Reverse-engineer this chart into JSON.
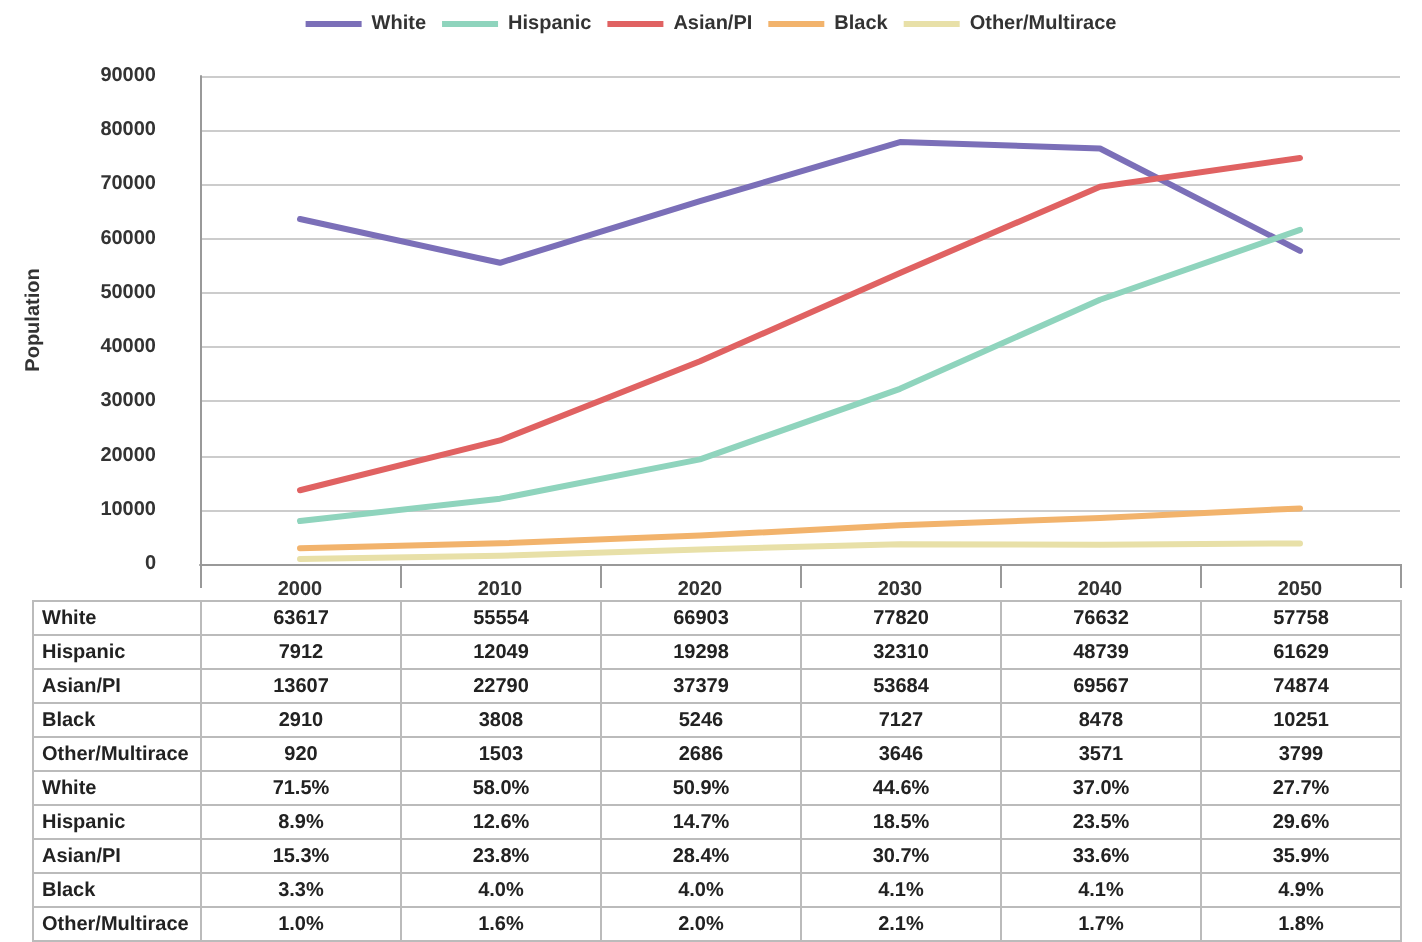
{
  "chart_data": {
    "type": "line",
    "ylabel": "Population",
    "categories": [
      "2000",
      "2010",
      "2020",
      "2030",
      "2040",
      "2050"
    ],
    "series": [
      {
        "name": "White",
        "color": "#7b6fb8",
        "values": [
          63617,
          55554,
          66903,
          77820,
          76632,
          57758
        ]
      },
      {
        "name": "Hispanic",
        "color": "#8fd4bd",
        "values": [
          7912,
          12049,
          19298,
          32310,
          48739,
          61629
        ]
      },
      {
        "name": "Asian/PI",
        "color": "#e06262",
        "values": [
          13607,
          22790,
          37379,
          53684,
          69567,
          74874
        ]
      },
      {
        "name": "Black",
        "color": "#f2b36c",
        "values": [
          2910,
          3808,
          5246,
          7127,
          8478,
          10251
        ]
      },
      {
        "name": "Other/Multirace",
        "color": "#e8e0a8",
        "values": [
          920,
          1503,
          2686,
          3646,
          3571,
          3799
        ]
      }
    ],
    "ylim": [
      0,
      90000
    ],
    "yticks": [
      0,
      10000,
      20000,
      30000,
      40000,
      50000,
      60000,
      70000,
      80000,
      90000
    ],
    "grid": "y",
    "legend": "top",
    "marker": "none",
    "line_style": "solid",
    "data_labels": true,
    "annotations": [
      "White",
      "71.5%",
      "58.0%",
      "50.9%",
      "44.6%",
      "37.0%",
      "27.7%",
      "Hispanic",
      "8.9%",
      "12.6%",
      "14.7%",
      "18.5%",
      "23.5%",
      "29.6%",
      "Asian/PI",
      "15.3%",
      "23.8%",
      "28.4%",
      "30.7%",
      "33.6%",
      "35.9%",
      "Black",
      "3.3%",
      "4.0%",
      "4.0%",
      "4.1%",
      "4.1%",
      "4.9%",
      "Other/Multirace",
      "1.0%",
      "1.6%",
      "2.0%",
      "2.1%",
      "1.7%",
      "1.8%"
    ]
  }
}
